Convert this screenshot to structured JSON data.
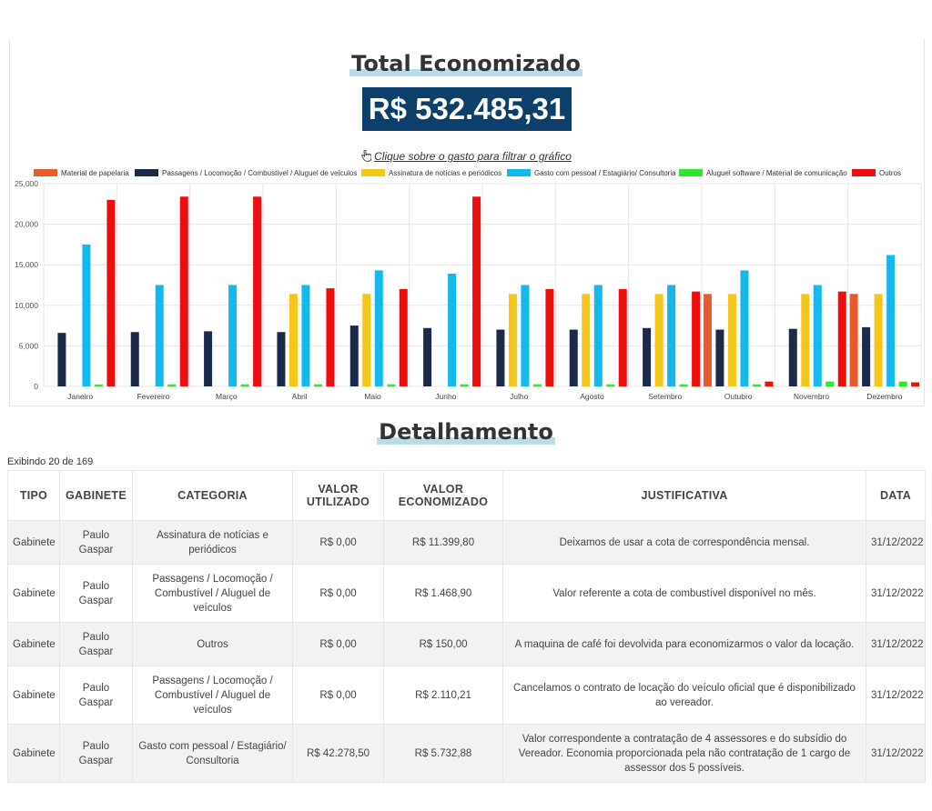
{
  "header": {
    "title": "Total Economizado",
    "total": "R$ 532.485,31",
    "hint": "Clique sobre o gasto para filtrar o gráfico"
  },
  "chart_data": {
    "type": "bar",
    "categories": [
      "Janeiro",
      "Fevereiro",
      "Março",
      "Abril",
      "Maio",
      "Junho",
      "Julho",
      "Agosto",
      "Setembro",
      "Outubro",
      "Novembro",
      "Dezembro"
    ],
    "ylim": [
      0,
      25000
    ],
    "yticks": [
      "0",
      "5,000",
      "10,000",
      "15,000",
      "20,000",
      "25,000"
    ],
    "ytick_values": [
      0,
      5000,
      10000,
      15000,
      20000,
      25000
    ],
    "grid": true,
    "legend_position": "top",
    "series": [
      {
        "name": "Material de papelaria",
        "color": "#e85c2c",
        "values": [
          0,
          0,
          0,
          0,
          0,
          0,
          0,
          0,
          0,
          11400,
          0,
          11400
        ]
      },
      {
        "name": "Passagens / Locomoção / Combustível / Aluguel de veículos",
        "color": "#1b2a4a",
        "values": [
          6600,
          6700,
          6800,
          6700,
          7500,
          7200,
          7000,
          7000,
          7200,
          7000,
          7100,
          7300
        ]
      },
      {
        "name": "Assinatura de notícias e periódicos",
        "color": "#f5c518",
        "values": [
          0,
          0,
          0,
          11400,
          11400,
          0,
          11400,
          11400,
          11400,
          11400,
          11400,
          11400
        ]
      },
      {
        "name": "Gasto com pessoal / Estagiário/ Consultoria",
        "color": "#14b8ec",
        "values": [
          17500,
          12500,
          12500,
          12500,
          14300,
          13900,
          12500,
          12500,
          12500,
          14300,
          12500,
          16200
        ]
      },
      {
        "name": "Aluguel software / Material de comunicação",
        "color": "#2ee82e",
        "values": [
          250,
          250,
          250,
          250,
          250,
          250,
          250,
          250,
          250,
          250,
          600,
          600
        ]
      },
      {
        "name": "Outros",
        "color": "#ee0e0e",
        "values": [
          23000,
          23400,
          23400,
          12100,
          12000,
          23400,
          12000,
          12000,
          11700,
          600,
          11700,
          500
        ]
      }
    ]
  },
  "table": {
    "showing": "Exibindo 20 de 169",
    "headers": {
      "tipo": "TIPO",
      "gabinete": "GABINETE",
      "categoria": "CATEGORIA",
      "valor_utilizado": "VALOR UTILIZADO",
      "valor_economizado": "VALOR ECONOMIZADO",
      "justificativa": "JUSTIFICATIVA",
      "data": "DATA"
    },
    "rows": [
      {
        "tipo": "Gabinete",
        "gabinete": "Paulo Gaspar",
        "categoria": "Assinatura de notícias e periódicos",
        "utilizado": "R$ 0,00",
        "economizado": "R$ 11.399,80",
        "justificativa": "Deixamos de usar a cota de correspondência mensal.",
        "data": "31/12/2022"
      },
      {
        "tipo": "Gabinete",
        "gabinete": "Paulo Gaspar",
        "categoria": "Passagens / Locomoção / Combustível / Aluguel de veículos",
        "utilizado": "R$ 0,00",
        "economizado": "R$ 1.468,90",
        "justificativa": "Valor referente a cota de combustível disponível no mês.",
        "data": "31/12/2022"
      },
      {
        "tipo": "Gabinete",
        "gabinete": "Paulo Gaspar",
        "categoria": "Outros",
        "utilizado": "R$ 0,00",
        "economizado": "R$ 150,00",
        "justificativa": "A maquina de café foi devolvida para economizarmos o valor da locação.",
        "data": "31/12/2022"
      },
      {
        "tipo": "Gabinete",
        "gabinete": "Paulo Gaspar",
        "categoria": "Passagens / Locomoção / Combustível / Aluguel de veículos",
        "utilizado": "R$ 0,00",
        "economizado": "R$ 2.110,21",
        "justificativa": "Cancelamos o contrato de locação do veículo oficial que é disponibilizado ao vereador.",
        "data": "31/12/2022"
      },
      {
        "tipo": "Gabinete",
        "gabinete": "Paulo Gaspar",
        "categoria": "Gasto com pessoal / Estagiário/ Consultoria",
        "utilizado": "R$ 42.278,50",
        "economizado": "R$ 5.732,88",
        "justificativa": "Valor correspondente a contratação de 4 assessores e do subsídio do Vereador. Economia proporcionada pela não contratação de 1 cargo de assessor dos 5 possíveis.",
        "data": "31/12/2022"
      }
    ]
  },
  "section_title": "Detalhamento"
}
